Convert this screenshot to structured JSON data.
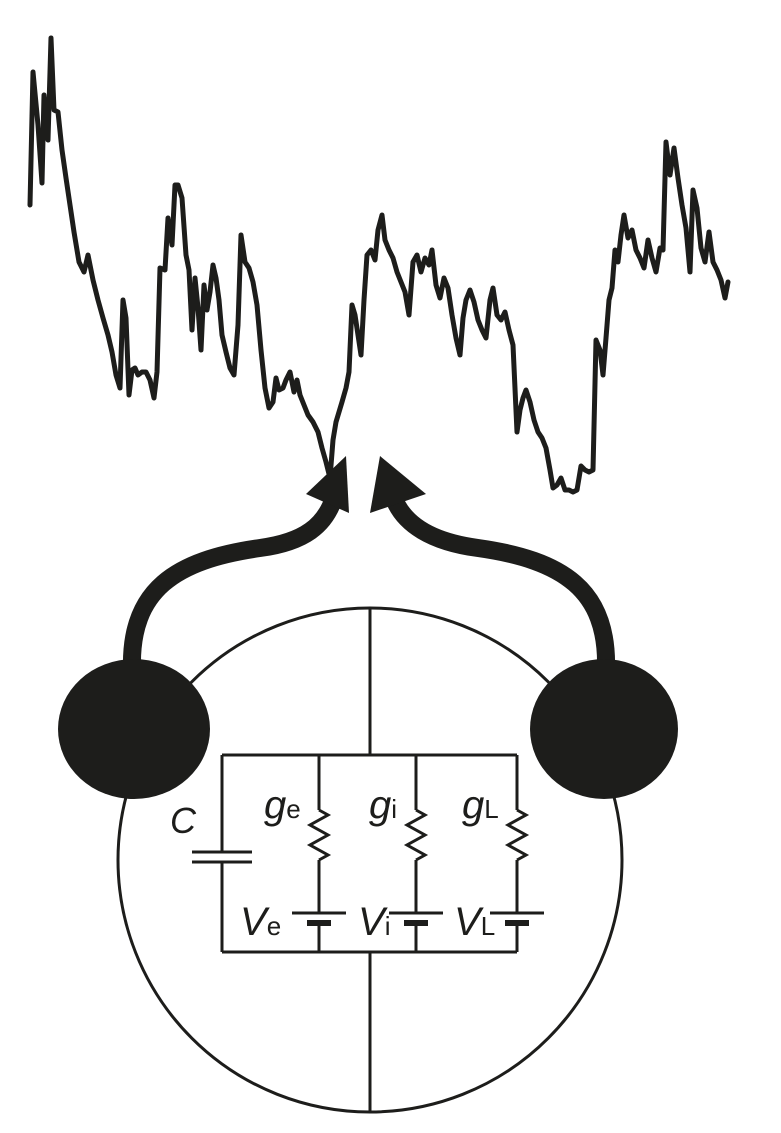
{
  "colors": {
    "ink": "#1d1d1b",
    "background": "#ffffff"
  },
  "trace": {
    "description_icon": "membrane-potential-trace",
    "points": [
      [
        30,
        205
      ],
      [
        33,
        72
      ],
      [
        38,
        125
      ],
      [
        42,
        183
      ],
      [
        44,
        95
      ],
      [
        48,
        140
      ],
      [
        51,
        38
      ],
      [
        54,
        110
      ],
      [
        58,
        112
      ],
      [
        62,
        150
      ],
      [
        66,
        178
      ],
      [
        70,
        205
      ],
      [
        74,
        232
      ],
      [
        79,
        262
      ],
      [
        84,
        272
      ],
      [
        88,
        255
      ],
      [
        93,
        280
      ],
      [
        98,
        300
      ],
      [
        103,
        318
      ],
      [
        108,
        335
      ],
      [
        112,
        352
      ],
      [
        116,
        375
      ],
      [
        120,
        388
      ],
      [
        123,
        300
      ],
      [
        126,
        318
      ],
      [
        129,
        395
      ],
      [
        132,
        370
      ],
      [
        135,
        368
      ],
      [
        138,
        375
      ],
      [
        142,
        372
      ],
      [
        146,
        372
      ],
      [
        150,
        380
      ],
      [
        154,
        398
      ],
      [
        157,
        372
      ],
      [
        160,
        268
      ],
      [
        165,
        270
      ],
      [
        168,
        218
      ],
      [
        172,
        245
      ],
      [
        175,
        185
      ],
      [
        178,
        185
      ],
      [
        182,
        198
      ],
      [
        186,
        255
      ],
      [
        189,
        270
      ],
      [
        192,
        330
      ],
      [
        195,
        278
      ],
      [
        198,
        308
      ],
      [
        201,
        350
      ],
      [
        204,
        285
      ],
      [
        207,
        310
      ],
      [
        210,
        292
      ],
      [
        213,
        265
      ],
      [
        216,
        278
      ],
      [
        219,
        300
      ],
      [
        222,
        335
      ],
      [
        226,
        352
      ],
      [
        230,
        368
      ],
      [
        234,
        375
      ],
      [
        238,
        325
      ],
      [
        241,
        235
      ],
      [
        245,
        262
      ],
      [
        249,
        268
      ],
      [
        253,
        282
      ],
      [
        257,
        305
      ],
      [
        261,
        350
      ],
      [
        265,
        388
      ],
      [
        269,
        408
      ],
      [
        273,
        402
      ],
      [
        276,
        378
      ],
      [
        279,
        390
      ],
      [
        283,
        388
      ],
      [
        286,
        380
      ],
      [
        290,
        372
      ],
      [
        294,
        392
      ],
      [
        297,
        380
      ],
      [
        300,
        395
      ],
      [
        304,
        405
      ],
      [
        308,
        415
      ],
      [
        313,
        422
      ],
      [
        318,
        432
      ],
      [
        322,
        448
      ],
      [
        326,
        462
      ],
      [
        330,
        478
      ],
      [
        333,
        440
      ],
      [
        336,
        422
      ],
      [
        339,
        412
      ],
      [
        342,
        402
      ],
      [
        346,
        388
      ],
      [
        349,
        372
      ],
      [
        352,
        305
      ],
      [
        355,
        315
      ],
      [
        358,
        335
      ],
      [
        361,
        355
      ],
      [
        364,
        300
      ],
      [
        367,
        255
      ],
      [
        371,
        250
      ],
      [
        375,
        260
      ],
      [
        378,
        230
      ],
      [
        382,
        215
      ],
      [
        385,
        240
      ],
      [
        389,
        250
      ],
      [
        393,
        258
      ],
      [
        397,
        272
      ],
      [
        401,
        282
      ],
      [
        405,
        292
      ],
      [
        409,
        315
      ],
      [
        413,
        262
      ],
      [
        417,
        255
      ],
      [
        421,
        272
      ],
      [
        425,
        258
      ],
      [
        429,
        265
      ],
      [
        432,
        250
      ],
      [
        436,
        285
      ],
      [
        440,
        298
      ],
      [
        444,
        278
      ],
      [
        448,
        288
      ],
      [
        452,
        315
      ],
      [
        456,
        338
      ],
      [
        460,
        355
      ],
      [
        463,
        318
      ],
      [
        466,
        300
      ],
      [
        470,
        290
      ],
      [
        474,
        302
      ],
      [
        478,
        320
      ],
      [
        482,
        330
      ],
      [
        486,
        338
      ],
      [
        490,
        300
      ],
      [
        493,
        288
      ],
      [
        497,
        315
      ],
      [
        501,
        320
      ],
      [
        505,
        312
      ],
      [
        509,
        330
      ],
      [
        513,
        345
      ],
      [
        517,
        432
      ],
      [
        520,
        410
      ],
      [
        523,
        398
      ],
      [
        526,
        390
      ],
      [
        530,
        402
      ],
      [
        534,
        420
      ],
      [
        538,
        432
      ],
      [
        542,
        438
      ],
      [
        546,
        448
      ],
      [
        550,
        470
      ],
      [
        553,
        488
      ],
      [
        557,
        485
      ],
      [
        561,
        478
      ],
      [
        565,
        490
      ],
      [
        569,
        490
      ],
      [
        573,
        492
      ],
      [
        577,
        490
      ],
      [
        581,
        466
      ],
      [
        585,
        470
      ],
      [
        589,
        472
      ],
      [
        593,
        470
      ],
      [
        596,
        340
      ],
      [
        600,
        350
      ],
      [
        603,
        375
      ],
      [
        606,
        338
      ],
      [
        609,
        300
      ],
      [
        612,
        288
      ],
      [
        615,
        250
      ],
      [
        618,
        262
      ],
      [
        621,
        235
      ],
      [
        624,
        215
      ],
      [
        628,
        238
      ],
      [
        632,
        230
      ],
      [
        636,
        250
      ],
      [
        640,
        258
      ],
      [
        644,
        268
      ],
      [
        648,
        240
      ],
      [
        652,
        258
      ],
      [
        656,
        272
      ],
      [
        660,
        248
      ],
      [
        663,
        250
      ],
      [
        666,
        142
      ],
      [
        670,
        175
      ],
      [
        674,
        148
      ],
      [
        678,
        178
      ],
      [
        682,
        205
      ],
      [
        686,
        228
      ],
      [
        690,
        272
      ],
      [
        693,
        190
      ],
      [
        697,
        208
      ],
      [
        701,
        248
      ],
      [
        705,
        262
      ],
      [
        709,
        232
      ],
      [
        713,
        262
      ],
      [
        717,
        270
      ],
      [
        721,
        280
      ],
      [
        725,
        298
      ],
      [
        728,
        282
      ]
    ]
  },
  "circuit": {
    "capacitor": {
      "label": "C"
    },
    "branches": [
      {
        "g_main": "g",
        "g_sub": "e",
        "v_main": "V",
        "v_sub": "e"
      },
      {
        "g_main": "g",
        "g_sub": "i",
        "v_main": "V",
        "v_sub": "i"
      },
      {
        "g_main": "g",
        "g_sub": "L",
        "v_main": "V",
        "v_sub": "L"
      }
    ]
  },
  "icons": {
    "cell": "cell-circle-icon",
    "left_input": "excitatory-neuron-icon",
    "right_input": "inhibitory-neuron-icon",
    "arrows": "synaptic-input-arrow-icon"
  }
}
